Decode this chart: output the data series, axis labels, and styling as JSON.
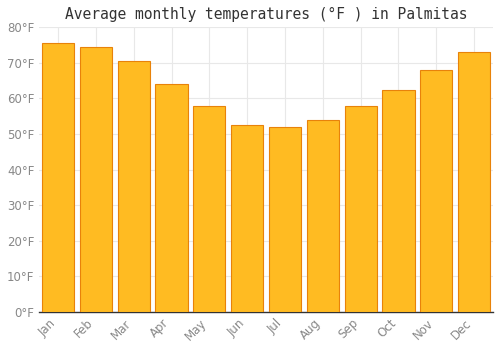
{
  "title": "Average monthly temperatures (°F ) in Palmitas",
  "months": [
    "Jan",
    "Feb",
    "Mar",
    "Apr",
    "May",
    "Jun",
    "Jul",
    "Aug",
    "Sep",
    "Oct",
    "Nov",
    "Dec"
  ],
  "values": [
    75.5,
    74.5,
    70.5,
    64.0,
    58.0,
    52.5,
    52.0,
    54.0,
    58.0,
    62.5,
    68.0,
    73.0
  ],
  "bar_color_face": "#FFBB22",
  "bar_color_edge": "#E8820A",
  "background_color": "#FFFFFF",
  "grid_color": "#E8E8E8",
  "text_color": "#888888",
  "ylim": [
    0,
    80
  ],
  "ytick_step": 10,
  "title_fontsize": 10.5,
  "tick_fontsize": 8.5
}
